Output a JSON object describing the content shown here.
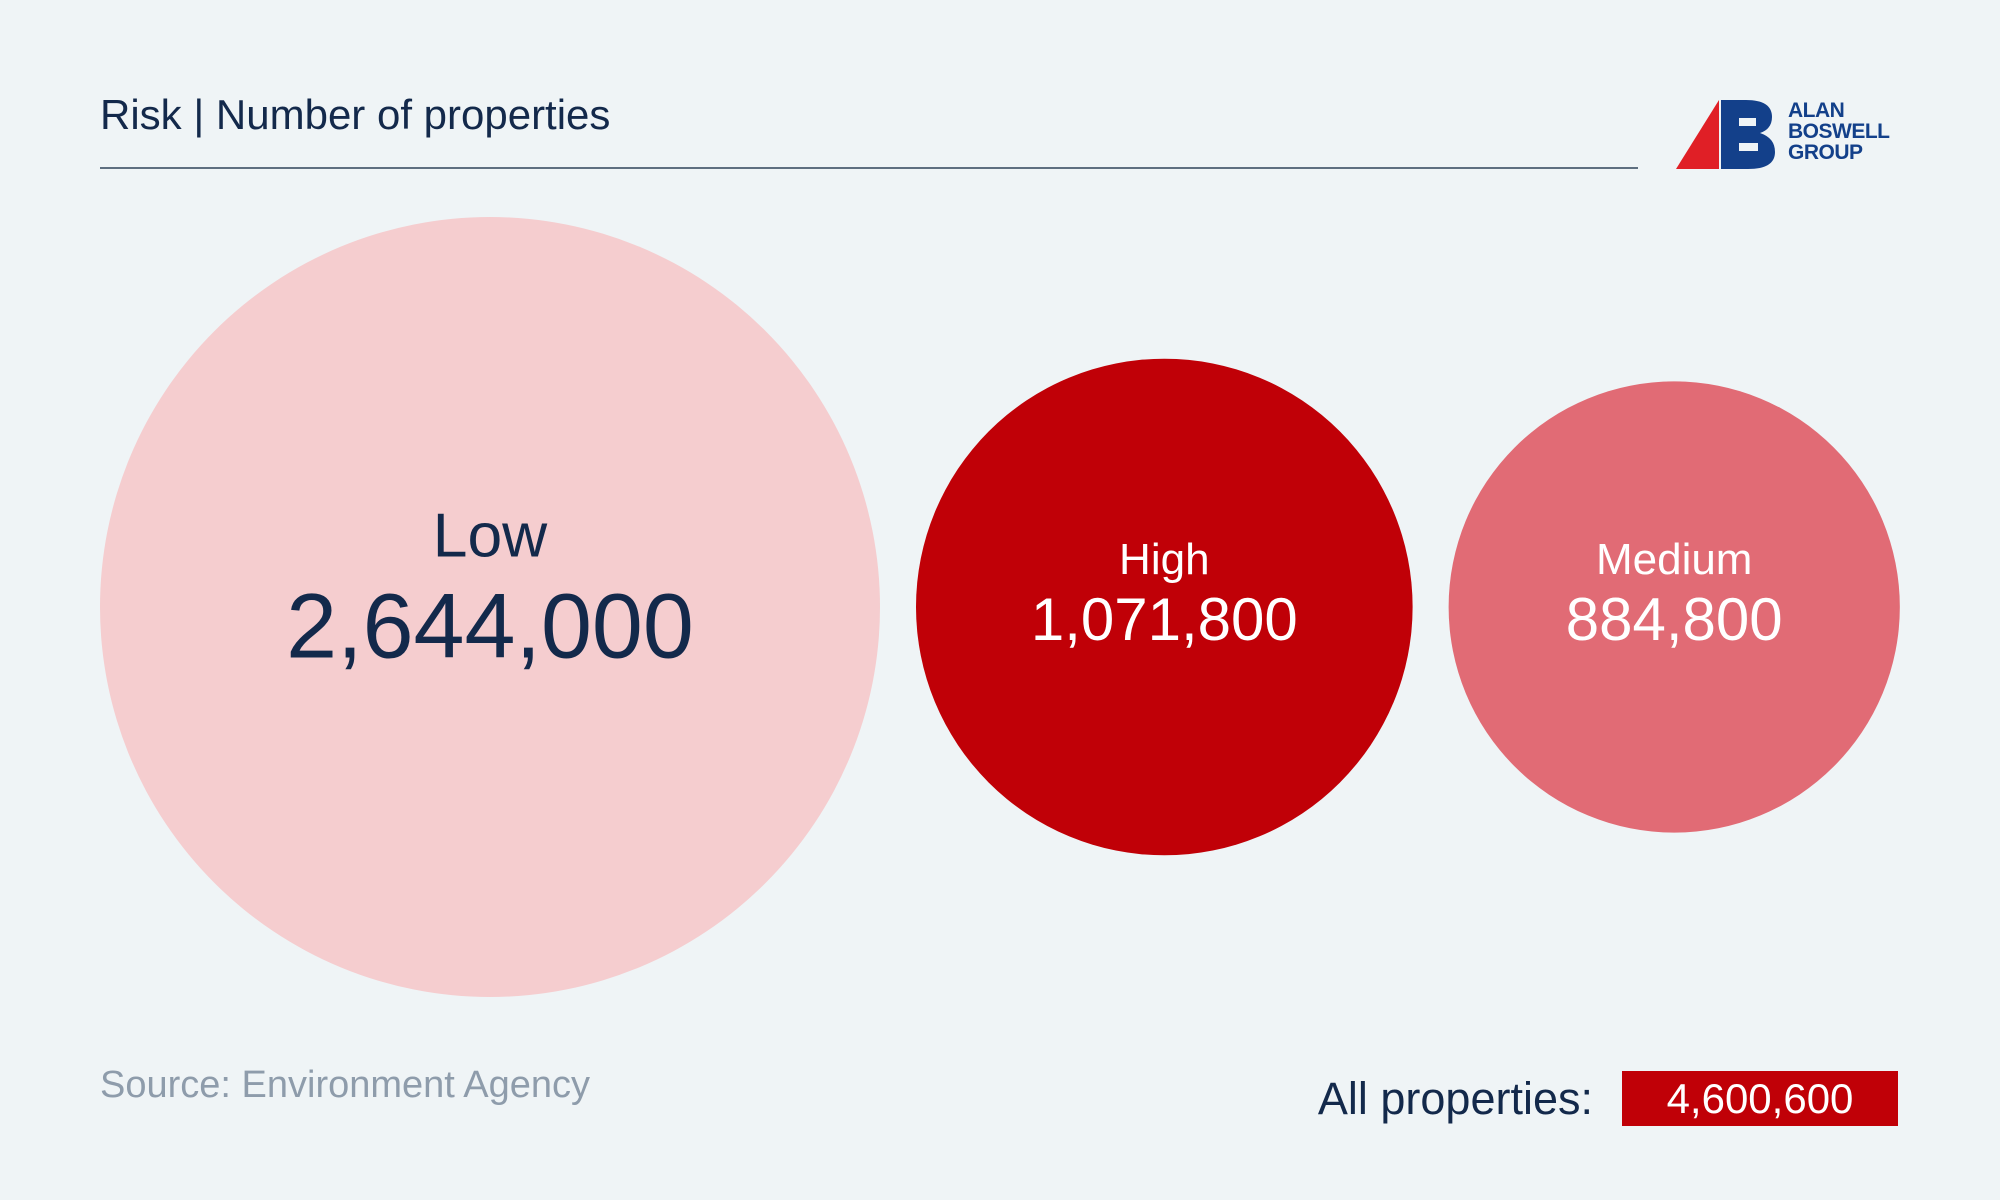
{
  "header": {
    "title": "Risk | Number of properties"
  },
  "logo": {
    "lines": [
      "ALAN",
      "BOSWELL",
      "GROUP"
    ],
    "colors": {
      "red": "#e01f26",
      "navy": "#13408a"
    }
  },
  "chart_data": {
    "type": "bubble",
    "title": "Risk | Number of properties",
    "categories": [
      "Low",
      "High",
      "Medium"
    ],
    "values": [
      2644000,
      1071800,
      884800
    ],
    "value_labels": [
      "2,644,000",
      "1,071,800",
      "884,800"
    ],
    "colors": [
      "#f5cdcf",
      "#c00007",
      "#e16b75"
    ],
    "label_colors": [
      "#13294b",
      "#ffffff",
      "#ffffff"
    ]
  },
  "footer": {
    "source": "Source: Environment Agency",
    "total_label": "All properties:",
    "total_value": "4,600,600"
  }
}
